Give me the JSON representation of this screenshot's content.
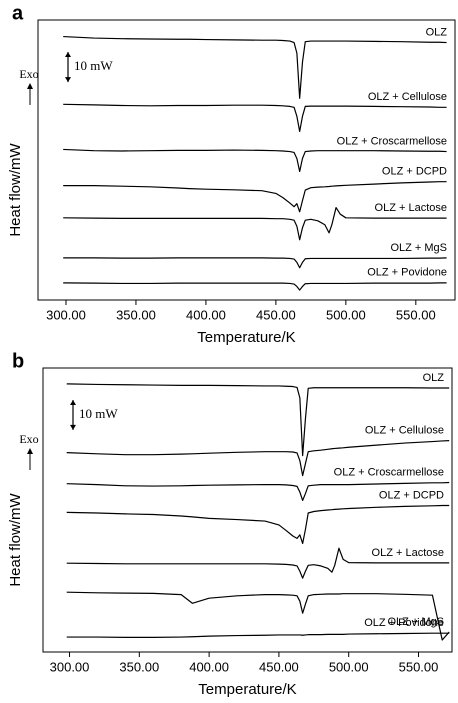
{
  "chart_data": [
    {
      "type": "line",
      "panel": "a",
      "x_label": "Temperature/K",
      "y_label": "Heat flow/mW",
      "exo_label": "Exo",
      "scale_bar": {
        "value": 10,
        "label": "10 mW"
      },
      "xlim": [
        280,
        578
      ],
      "ylim": [
        0,
        93
      ],
      "xticks": [
        {
          "value": 300,
          "label": "300.00"
        },
        {
          "value": 350,
          "label": "350.00"
        },
        {
          "value": 400,
          "label": "400.00"
        },
        {
          "value": 450,
          "label": "450.00"
        },
        {
          "value": 500,
          "label": "500.00"
        },
        {
          "value": 550,
          "label": "550.00"
        }
      ],
      "x": [
        298,
        320,
        340,
        360,
        380,
        388,
        400,
        420,
        440,
        450,
        455,
        460,
        463,
        465,
        467,
        469,
        471,
        475,
        480,
        485,
        488,
        490,
        493,
        496,
        500,
        520,
        540,
        560,
        567,
        572
      ],
      "series": [
        {
          "name": "OLZ",
          "color": "#000000",
          "values": [
            87.5,
            87,
            86.8,
            86.7,
            86.6,
            86.6,
            86.5,
            86.4,
            86.3,
            86.3,
            86.2,
            86,
            85.5,
            82,
            67,
            79,
            85.8,
            86,
            86,
            86,
            86,
            86,
            86,
            86,
            86,
            85.9,
            85.8,
            85.6,
            85.6,
            85.5
          ]
        },
        {
          "name": "OLZ + Cellulose",
          "color": "#000000",
          "values": [
            65,
            64.8,
            64.6,
            64.5,
            64.6,
            64.6,
            64.6,
            64.7,
            64.7,
            64.6,
            64.5,
            64.3,
            64,
            61,
            56,
            61,
            64.3,
            64.4,
            64.4,
            64.4,
            64.4,
            64.4,
            64.4,
            64.4,
            64.4,
            64.3,
            64.2,
            64.1,
            64,
            64
          ]
        },
        {
          "name": "OLZ + Croscarmellose",
          "color": "#000000",
          "values": [
            50,
            49.6,
            49.5,
            49.6,
            49.7,
            49.7,
            49.7,
            49.8,
            49.7,
            49.6,
            49.5,
            49.3,
            49,
            47,
            42.7,
            47,
            49.3,
            49.5,
            49.6,
            49.6,
            49.6,
            49.6,
            49.6,
            49.6,
            49.6,
            49.6,
            49.5,
            49.4,
            49.4,
            49.3
          ]
        },
        {
          "name": "OLZ + DCPD",
          "color": "#000000",
          "values": [
            38,
            38,
            37.8,
            37.6,
            37.2,
            37,
            36.8,
            36.6,
            36.3,
            35.4,
            34,
            32.2,
            31,
            32,
            29.3,
            33,
            36.5,
            37.3,
            37.5,
            37.6,
            37.7,
            37.8,
            37.9,
            38,
            38.1,
            38.5,
            38.9,
            39.2,
            39.3,
            39.3
          ]
        },
        {
          "name": "OLZ + Lactose",
          "color": "#000000",
          "values": [
            27.3,
            27.2,
            27.1,
            27.1,
            27.1,
            27.1,
            27.1,
            27.1,
            27.1,
            27,
            27,
            26.8,
            26.5,
            24.5,
            20,
            24,
            26.5,
            26.8,
            26.3,
            25,
            22.3,
            25,
            30.7,
            28.5,
            27.3,
            27.2,
            27.2,
            27.2,
            27.2,
            27.2
          ]
        },
        {
          "name": "OLZ + MgS",
          "color": "#000000",
          "values": [
            14,
            14,
            13.9,
            13.9,
            14,
            14,
            14,
            14,
            14,
            13.9,
            13.9,
            13.8,
            13.6,
            12.5,
            10.7,
            12.5,
            13.7,
            13.8,
            13.8,
            13.8,
            13.8,
            13.8,
            13.8,
            13.8,
            13.8,
            13.8,
            13.8,
            13.9,
            13.9,
            14
          ]
        },
        {
          "name": "OLZ + Povidone",
          "color": "#000000",
          "values": [
            5.7,
            5.6,
            5.5,
            5.5,
            5.6,
            5.6,
            5.6,
            5.6,
            5.6,
            5.6,
            5.6,
            5.5,
            5.3,
            4.5,
            3.3,
            4.5,
            5.4,
            5.5,
            5.5,
            5.5,
            5.5,
            5.5,
            5.5,
            5.5,
            5.5,
            5.6,
            5.6,
            5.6,
            5.7,
            5.7
          ]
        }
      ]
    },
    {
      "type": "line",
      "panel": "b",
      "x_label": "Temperature/K",
      "y_label": "Heat flow/mW",
      "exo_label": "Exo",
      "scale_bar": {
        "value": 10,
        "label": "10 mW"
      },
      "xlim": [
        281,
        574
      ],
      "ylim": [
        0,
        95
      ],
      "xticks": [
        {
          "value": 300,
          "label": "300.00"
        },
        {
          "value": 350,
          "label": "350.00"
        },
        {
          "value": 400,
          "label": "400.00"
        },
        {
          "value": 450,
          "label": "450.00"
        },
        {
          "value": 500,
          "label": "500.00"
        },
        {
          "value": 550,
          "label": "550.00"
        }
      ],
      "x": [
        298,
        320,
        340,
        360,
        380,
        388,
        400,
        420,
        440,
        450,
        455,
        460,
        463,
        465,
        467,
        469,
        471,
        475,
        480,
        485,
        488,
        490,
        493,
        496,
        500,
        520,
        540,
        560,
        567,
        572
      ],
      "series": [
        {
          "name": "OLZ",
          "color": "#000000",
          "values": [
            89.7,
            89.5,
            89.4,
            89.3,
            89.2,
            89.2,
            89.2,
            89.1,
            89,
            89,
            88.9,
            88.8,
            88.5,
            85,
            65.7,
            78,
            88.2,
            88.4,
            88.4,
            88.4,
            88.4,
            88.4,
            88.4,
            88.4,
            88.4,
            88.4,
            88.4,
            88.3,
            88.3,
            88.3
          ]
        },
        {
          "name": "OLZ + Cellulose",
          "color": "#000000",
          "values": [
            66.7,
            66.3,
            66,
            66,
            66.2,
            66.3,
            66.5,
            66.8,
            67,
            67,
            67,
            66.9,
            66.6,
            64,
            59,
            63,
            67,
            67.3,
            67.5,
            67.8,
            68,
            68.1,
            68.2,
            68.3,
            68.5,
            69.2,
            69.9,
            70.4,
            70.6,
            70.7
          ]
        },
        {
          "name": "OLZ + Croscarmellose",
          "color": "#000000",
          "values": [
            56.3,
            56,
            55.6,
            55.5,
            55.6,
            55.7,
            55.8,
            55.9,
            56,
            56,
            55.9,
            55.7,
            55.4,
            53.5,
            50.7,
            53,
            55.6,
            55.8,
            56,
            56,
            56,
            56,
            56,
            56,
            56,
            56.2,
            56.4,
            56.6,
            56.6,
            56.7
          ]
        },
        {
          "name": "OLZ + DCPD",
          "color": "#000000",
          "values": [
            46.7,
            46.5,
            46.2,
            46,
            45.5,
            45.2,
            44.7,
            44.3,
            43.8,
            42.5,
            40.7,
            38.8,
            38,
            39.2,
            36.3,
            41,
            46.5,
            47,
            47.3,
            47.5,
            47.6,
            47.7,
            47.8,
            47.9,
            48,
            48.4,
            48.7,
            48.9,
            49,
            49
          ]
        },
        {
          "name": "OLZ + Lactose",
          "color": "#000000",
          "values": [
            29.7,
            29.6,
            29.5,
            29.5,
            29.5,
            29.5,
            29.5,
            29.5,
            29.5,
            29.4,
            29.3,
            29.1,
            28.8,
            27,
            24.7,
            27,
            29,
            29.2,
            28.8,
            28,
            26.7,
            29,
            34.7,
            31,
            29.9,
            29.8,
            29.8,
            29.8,
            29.8,
            29.8
          ]
        },
        {
          "name": "OLZ + MgS",
          "color": "#000000",
          "values": [
            20,
            19.8,
            19.7,
            19.6,
            19.2,
            16.3,
            18,
            18.8,
            19.2,
            19.2,
            19.1,
            19,
            18.8,
            17,
            13,
            16,
            18.8,
            19.2,
            19.3,
            19.4,
            19.4,
            19.4,
            19.4,
            19.5,
            19.5,
            19.5,
            19.3,
            19,
            4,
            6.7
          ]
        },
        {
          "name": "OLZ + Povidone",
          "color": "#000000",
          "values": [
            5,
            5,
            4.9,
            4.9,
            5,
            5.1,
            5.3,
            5.5,
            5.6,
            5.7,
            5.7,
            5.7,
            5.7,
            5.7,
            5.6,
            5.7,
            5.8,
            5.8,
            5.8,
            5.9,
            5.9,
            5.9,
            5.9,
            5.9,
            6,
            6.1,
            6.2,
            6.3,
            6.3,
            6.3
          ]
        }
      ]
    }
  ]
}
